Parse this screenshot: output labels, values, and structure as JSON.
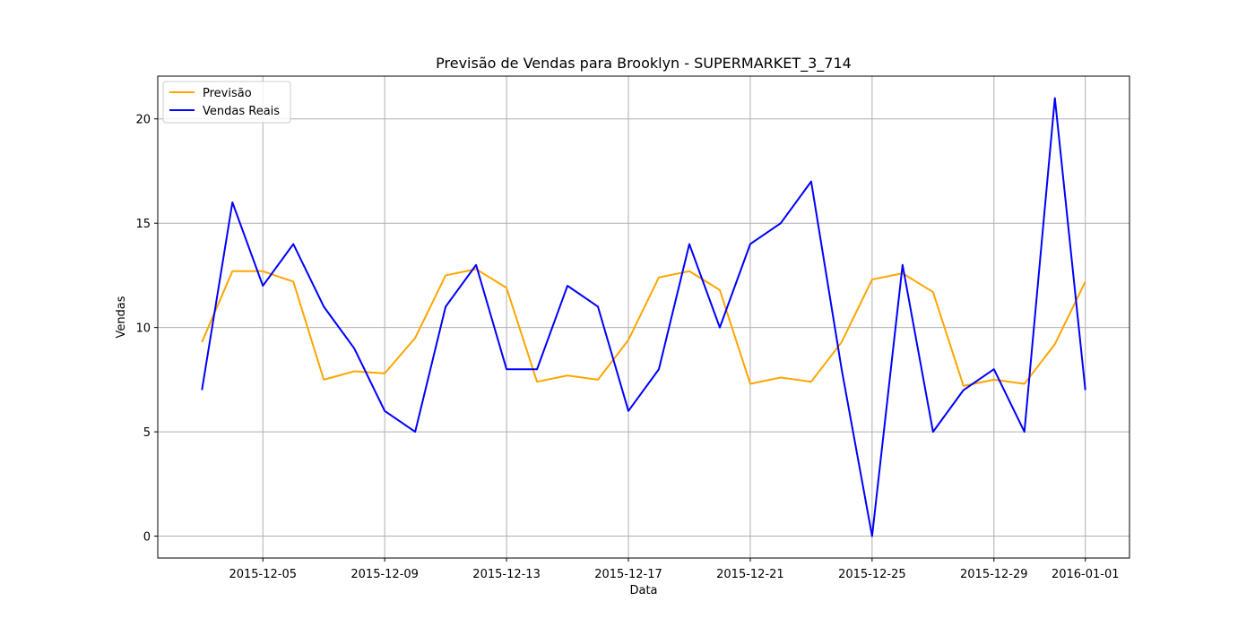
{
  "chart_data": {
    "type": "line",
    "title": "Previsão de Vendas para Brooklyn - SUPERMARKET_3_714",
    "xlabel": "Data",
    "ylabel": "Vendas",
    "x": [
      "2015-12-03",
      "2015-12-04",
      "2015-12-05",
      "2015-12-06",
      "2015-12-07",
      "2015-12-08",
      "2015-12-09",
      "2015-12-10",
      "2015-12-11",
      "2015-12-12",
      "2015-12-13",
      "2015-12-14",
      "2015-12-15",
      "2015-12-16",
      "2015-12-17",
      "2015-12-18",
      "2015-12-19",
      "2015-12-20",
      "2015-12-21",
      "2015-12-22",
      "2015-12-23",
      "2015-12-24",
      "2015-12-25",
      "2015-12-26",
      "2015-12-27",
      "2015-12-28",
      "2015-12-29",
      "2015-12-30",
      "2015-12-31",
      "2016-01-01"
    ],
    "x_ticks": [
      "2015-12-05",
      "2015-12-09",
      "2015-12-13",
      "2015-12-17",
      "2015-12-21",
      "2015-12-25",
      "2015-12-29",
      "2016-01-01"
    ],
    "y_ticks": [
      0,
      5,
      10,
      15,
      20
    ],
    "ylim": [
      -1.05,
      22.05
    ],
    "grid": true,
    "legend_position": "top-left",
    "series": [
      {
        "name": "Previsão",
        "color": "#ffa500",
        "values": [
          9.3,
          12.7,
          12.7,
          12.2,
          7.5,
          7.9,
          7.8,
          9.5,
          12.5,
          12.8,
          11.9,
          7.4,
          7.7,
          7.5,
          9.4,
          12.4,
          12.7,
          11.8,
          7.3,
          7.6,
          7.4,
          9.3,
          12.3,
          12.6,
          11.7,
          7.2,
          7.5,
          7.3,
          9.2,
          12.2
        ]
      },
      {
        "name": "Vendas Reais",
        "color": "#0000ff",
        "values": [
          7,
          16,
          12,
          14,
          11,
          9,
          6,
          5,
          11,
          13,
          8,
          8,
          12,
          11,
          6,
          8,
          14,
          10,
          14,
          15,
          17,
          8,
          0,
          13,
          5,
          7,
          8,
          5,
          21,
          7
        ]
      }
    ]
  }
}
